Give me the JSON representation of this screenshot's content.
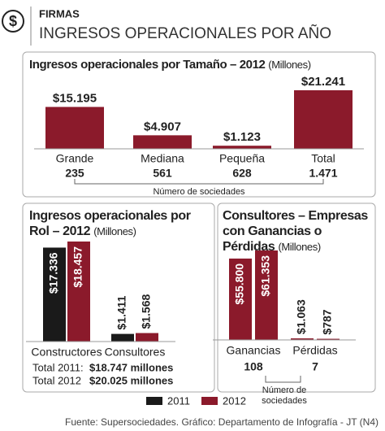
{
  "header": {
    "icon": "$",
    "section": "FIRMAS",
    "title": "INGRESOS OPERACIONALES POR AÑO"
  },
  "chart_data": [
    {
      "type": "bar",
      "title": "Ingresos operacionales por Tamaño – 2012",
      "subtitle": "(Millones)",
      "categories": [
        "Grande",
        "Mediana",
        "Pequeña",
        "Total"
      ],
      "values": [
        15195,
        4907,
        1123,
        21241
      ],
      "value_labels": [
        "$15.195",
        "$4.907",
        "$1.123",
        "$21.241"
      ],
      "color": "#8b1a2b",
      "counts": {
        "label": "Número de sociedades",
        "values": [
          235,
          561,
          628,
          1471
        ],
        "value_labels": [
          "235",
          "561",
          "628",
          "1.471"
        ]
      }
    },
    {
      "type": "bar",
      "title": "Ingresos operacionales por Rol – 2012",
      "subtitle": "(Millones)",
      "categories": [
        "Constructores",
        "Consultores"
      ],
      "series": [
        {
          "name": "2011",
          "color": "#1a1a1a",
          "values": [
            17336,
            1411
          ],
          "value_labels": [
            "$17.336",
            "$1.411"
          ]
        },
        {
          "name": "2012",
          "color": "#8b1a2b",
          "values": [
            18457,
            1568
          ],
          "value_labels": [
            "$18.457",
            "$1.568"
          ]
        }
      ],
      "totals": [
        {
          "label": "Total 2011:",
          "value": 18747,
          "value_label": "$18.747 millones"
        },
        {
          "label": "Total 2012",
          "value": 20025,
          "value_label": "$20.025 millones"
        }
      ]
    },
    {
      "type": "bar",
      "title": "Consultores – Empresas con Ganancias o Pérdidas",
      "subtitle": "(Millones)",
      "categories": [
        "Ganancias",
        "Pérdidas"
      ],
      "series": [
        {
          "color": "#8b1a2b",
          "values": [
            55800,
            1063
          ],
          "value_labels": [
            "$55.800",
            "$1.063"
          ]
        },
        {
          "color": "#8b1a2b",
          "values": [
            61353,
            787
          ],
          "value_labels": [
            "$61.353",
            "$787"
          ]
        }
      ],
      "counts": {
        "label": [
          "Número de",
          "sociedades"
        ],
        "values": [
          108,
          7
        ],
        "value_labels": [
          "108",
          "7"
        ]
      }
    }
  ],
  "footer": "Fuente: Supersociedades. Gráfico: Departamento de Infografía - JT (N4)"
}
